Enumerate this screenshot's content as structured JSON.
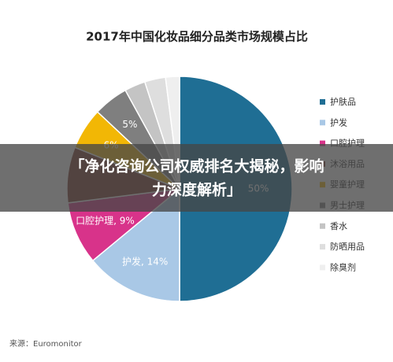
{
  "chart_data": {
    "type": "pie",
    "title": "2017年中国化妆品细分品类市场规模占比",
    "categories": [
      "护肤品",
      "护发",
      "口腔护理",
      "沐浴用品",
      "婴童护理",
      "男士护理",
      "香水",
      "防晒用品",
      "除臭剂"
    ],
    "values": [
      50,
      14,
      9,
      8,
      6,
      5,
      3,
      3,
      2
    ],
    "value_labels": [
      "50%",
      "护发, 14%",
      "口腔护理, 9%",
      null,
      "6%",
      "5%",
      null,
      null,
      null
    ],
    "colors": [
      "#1f6e94",
      "#a9c8e6",
      "#d8338a",
      "#7c3a2c",
      "#f2b705",
      "#7f7f7f",
      "#c4c4c4",
      "#dedede",
      "#efefef"
    ],
    "legend": "right",
    "source": "来源：Euromonitor"
  },
  "banner": {
    "lines": [
      "「净化咨询公司权威排名大揭秘，影响",
      "力深度解析」"
    ]
  }
}
